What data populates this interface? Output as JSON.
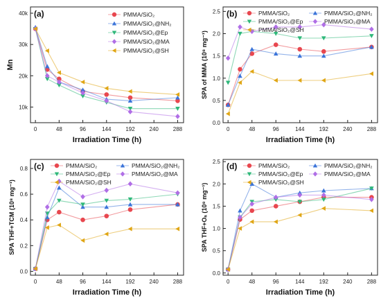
{
  "series_styles": [
    {
      "key": "SiO2",
      "color": "#e8474f",
      "marker": "circle"
    },
    {
      "key": "NH2",
      "color": "#3b74d9",
      "marker": "triangle-up"
    },
    {
      "key": "Ep",
      "color": "#2fb87a",
      "marker": "triangle-down"
    },
    {
      "key": "MA",
      "color": "#b06ee6",
      "marker": "diamond"
    },
    {
      "key": "SH",
      "color": "#e0a615",
      "marker": "triangle-left"
    }
  ],
  "chart_data": [
    {
      "type": "line",
      "panel_label": "(a)",
      "xlabel": "Irradiation Time (h)",
      "ylabel": "Mn",
      "ylim": [
        5000,
        42000
      ],
      "xlim": [
        -10,
        300
      ],
      "xticks": [
        "0",
        "48",
        "96",
        "144",
        "192",
        "240",
        "288"
      ],
      "yticks": [
        "10k",
        "20k",
        "30k",
        "40k"
      ],
      "ytick_values": [
        10000,
        20000,
        30000,
        40000
      ],
      "x": [
        0,
        24,
        48,
        96,
        144,
        192,
        288
      ],
      "legend_columns": 1,
      "legend_position": "top-right",
      "series": [
        {
          "name": "PMMA/SiO₂",
          "values": [
            35000,
            22000,
            19000,
            15000,
            14000,
            13000,
            12000
          ]
        },
        {
          "name": "PMMA/SiO₂@NH₂",
          "values": [
            35500,
            23000,
            18000,
            15500,
            12500,
            12000,
            13000
          ]
        },
        {
          "name": "PMMA/SiO₂@Ep",
          "values": [
            35000,
            19000,
            17000,
            13500,
            11500,
            9500,
            9500
          ]
        },
        {
          "name": "PMMA/SiO₂@MA",
          "values": [
            35000,
            20000,
            18000,
            14500,
            12000,
            8500,
            7000
          ]
        },
        {
          "name": "PMMA/SiO₂@SH",
          "values": [
            35000,
            28000,
            21000,
            18000,
            16000,
            15000,
            14000
          ]
        }
      ]
    },
    {
      "type": "line",
      "panel_label": "(b)",
      "xlabel": "Irradiation Time (h)",
      "ylabel": "SPA of MMA (10⁸ mg⁻¹)",
      "ylim": [
        0,
        2.6
      ],
      "xlim": [
        -10,
        300
      ],
      "xticks": [
        "0",
        "48",
        "96",
        "144",
        "192",
        "240",
        "288"
      ],
      "yticks": [
        "0.0",
        "0.5",
        "1.0",
        "1.5",
        "2.0",
        "2.5"
      ],
      "ytick_values": [
        0,
        0.5,
        1.0,
        1.5,
        2.0,
        2.5
      ],
      "x": [
        0,
        24,
        48,
        96,
        144,
        192,
        288
      ],
      "legend_columns": 2,
      "legend_position": "top",
      "series": [
        {
          "name": "PMMA/SiO₂",
          "values": [
            0.4,
            1.2,
            1.55,
            1.75,
            1.65,
            1.6,
            1.7
          ]
        },
        {
          "name": "PMMA/SiO₂@NH₂",
          "values": [
            0.4,
            1.05,
            1.65,
            1.55,
            1.5,
            1.5,
            1.7
          ]
        },
        {
          "name": "PMMA/SiO₂@Ep",
          "values": [
            0.9,
            2.0,
            2.05,
            2.0,
            1.9,
            1.9,
            1.95
          ]
        },
        {
          "name": "PMMA/SiO₂@MA",
          "values": [
            1.45,
            2.15,
            2.05,
            2.15,
            2.15,
            2.2,
            2.1
          ]
        },
        {
          "name": "PMMA/SiO₂@SH",
          "values": [
            0.2,
            0.9,
            1.15,
            0.95,
            0.95,
            0.95,
            1.1
          ]
        }
      ]
    },
    {
      "type": "line",
      "panel_label": "(c)",
      "xlabel": "Irradiation Time (h)",
      "ylabel": "SPA THF+TCM (10⁸ mg⁻¹)",
      "ylim": [
        -0.03,
        0.87
      ],
      "xlim": [
        -10,
        300
      ],
      "xticks": [
        "0",
        "48",
        "96",
        "144",
        "192",
        "240",
        "288"
      ],
      "yticks": [
        "0.0",
        "0.2",
        "0.4",
        "0.6",
        "0.8"
      ],
      "ytick_values": [
        0,
        0.2,
        0.4,
        0.6,
        0.8
      ],
      "x": [
        0,
        24,
        48,
        96,
        144,
        192,
        288
      ],
      "legend_columns": 2,
      "legend_position": "top",
      "series": [
        {
          "name": "PMMA/SiO₂",
          "values": [
            0.02,
            0.4,
            0.46,
            0.4,
            0.43,
            0.48,
            0.52
          ]
        },
        {
          "name": "PMMA/SiO₂@NH₂",
          "values": [
            0.02,
            0.42,
            0.65,
            0.5,
            0.5,
            0.52,
            0.52
          ]
        },
        {
          "name": "PMMA/SiO₂@Ep",
          "values": [
            0.02,
            0.45,
            0.55,
            0.52,
            0.55,
            0.56,
            0.6
          ]
        },
        {
          "name": "PMMA/SiO₂@MA",
          "values": [
            0.02,
            0.5,
            0.7,
            0.58,
            0.63,
            0.68,
            0.61
          ]
        },
        {
          "name": "PMMA/SiO₂@SH",
          "values": [
            0.02,
            0.34,
            0.36,
            0.24,
            0.29,
            0.33,
            0.33
          ]
        }
      ]
    },
    {
      "type": "line",
      "panel_label": "(d)",
      "xlabel": "Irradiation Time (h)",
      "ylabel": "SPA THF+Oₐ (10⁸ mg⁻¹)",
      "ylim": [
        -0.05,
        2.55
      ],
      "xlim": [
        -10,
        300
      ],
      "xticks": [
        "0",
        "48",
        "96",
        "144",
        "192",
        "240",
        "288"
      ],
      "yticks": [
        "0.0",
        "0.5",
        "1.0",
        "1.5",
        "2.0",
        "2.5"
      ],
      "ytick_values": [
        0,
        0.5,
        1.0,
        1.5,
        2.0,
        2.5
      ],
      "x": [
        0,
        24,
        48,
        96,
        144,
        192,
        288
      ],
      "legend_columns": 2,
      "legend_position": "top",
      "series": [
        {
          "name": "PMMA/SiO₂",
          "values": [
            0.08,
            1.2,
            1.4,
            1.5,
            1.6,
            1.7,
            1.7
          ]
        },
        {
          "name": "PMMA/SiO₂@NH₂",
          "values": [
            0.08,
            1.4,
            2.0,
            1.7,
            1.8,
            1.85,
            1.9
          ]
        },
        {
          "name": "PMMA/SiO₂@Ep",
          "values": [
            0.08,
            1.25,
            1.6,
            1.65,
            1.6,
            1.65,
            1.9
          ]
        },
        {
          "name": "PMMA/SiO₂@MA",
          "values": [
            0.08,
            1.25,
            1.55,
            1.7,
            1.75,
            1.75,
            1.65
          ]
        },
        {
          "name": "PMMA/SiO₂@SH",
          "values": [
            0.08,
            1.0,
            1.15,
            1.15,
            1.3,
            1.45,
            1.4
          ]
        }
      ]
    }
  ]
}
